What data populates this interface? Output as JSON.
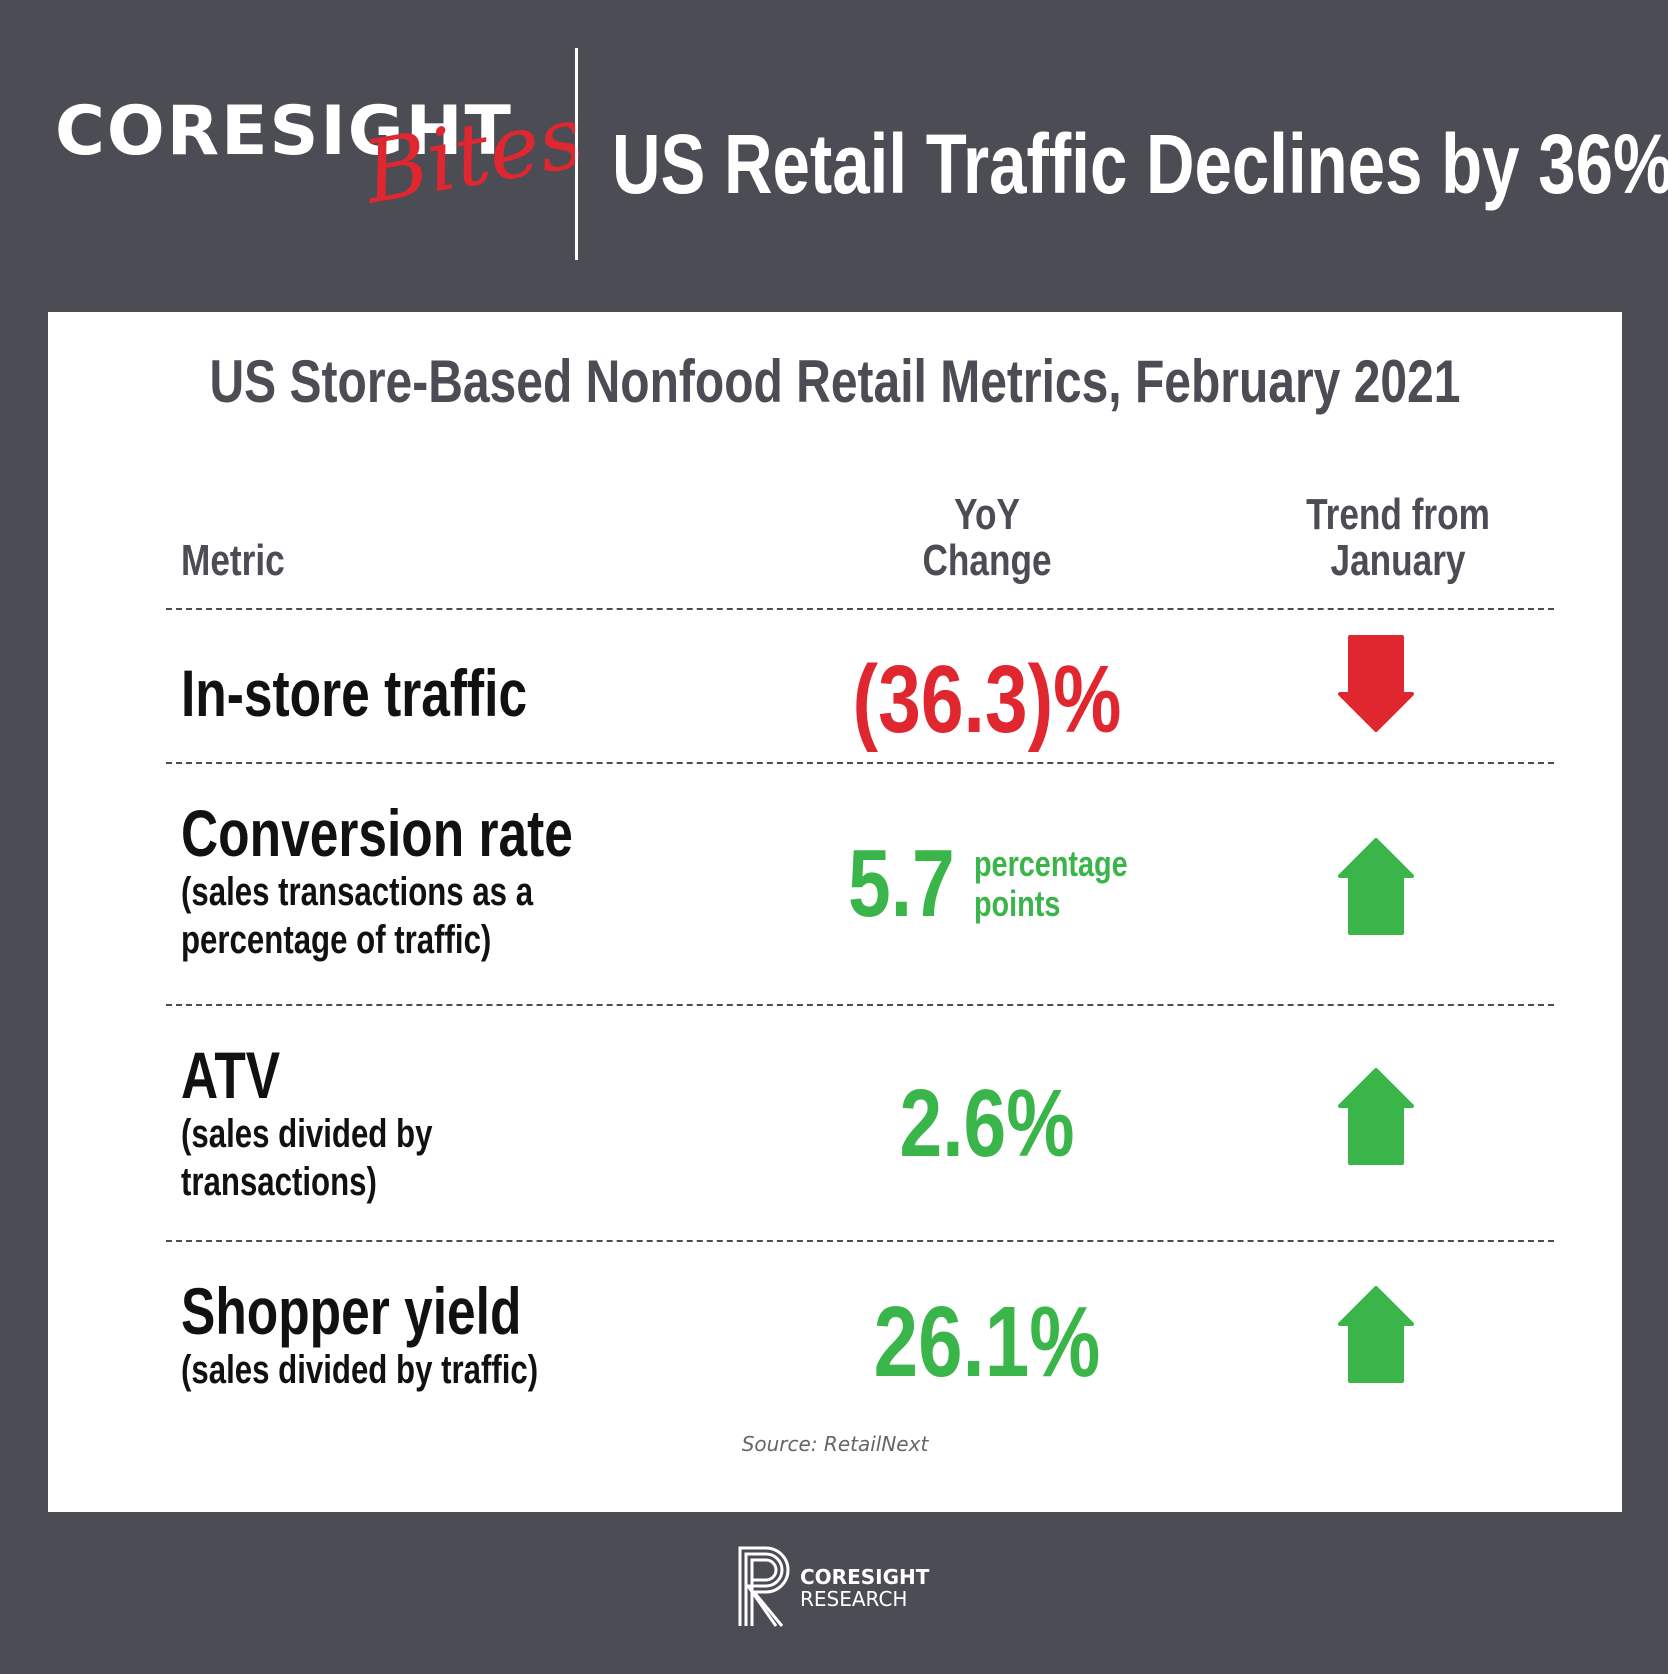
{
  "brand": {
    "name": "CORESIGHT",
    "sub": "Bites"
  },
  "headline": "US Retail Traffic Declines by 36%",
  "card": {
    "title": "US Store-Based Nonfood Retail Metrics, February 2021",
    "columns": {
      "metric": "Metric",
      "yoy": [
        "YoY",
        "Change"
      ],
      "trend": [
        "Trend from",
        "January"
      ]
    },
    "rows": [
      {
        "name": "In-store traffic",
        "desc": [],
        "yoy": "(36.3)%",
        "trend": "down",
        "trend_icon": "down-arrow-icon",
        "color": "#e0262f"
      },
      {
        "name": "Conversion rate",
        "desc": [
          "(sales transactions as a",
          "percentage of traffic)"
        ],
        "yoy": "5.7",
        "yoy_unit": [
          "percentage",
          "points"
        ],
        "trend": "up",
        "trend_icon": "up-arrow-icon",
        "color": "#39b54a"
      },
      {
        "name": "ATV",
        "desc": [
          "(sales divided by",
          "transactions)"
        ],
        "yoy": "2.6%",
        "trend": "up",
        "trend_icon": "up-arrow-icon",
        "color": "#39b54a"
      },
      {
        "name": "Shopper yield",
        "desc": [
          "(sales divided by traffic)"
        ],
        "yoy": "26.1%",
        "trend": "up",
        "trend_icon": "up-arrow-icon",
        "color": "#39b54a"
      }
    ],
    "source": "Source: RetailNext"
  },
  "footer": {
    "logo_icon": "coresight-r-logo-icon",
    "line1": "CORESIGHT",
    "line2": "RESEARCH"
  },
  "colors": {
    "background": "#4b4c54",
    "card": "#ffffff",
    "negative": "#e0262f",
    "positive": "#39b54a"
  }
}
